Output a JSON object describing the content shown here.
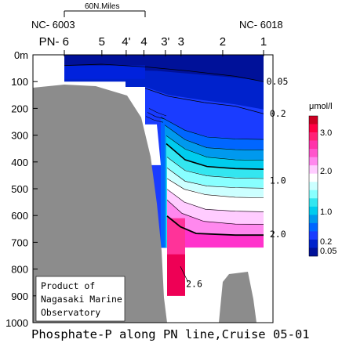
{
  "chart_data": {
    "type": "contour",
    "title": "Phosphate-P along PN line,Cruise 05-01",
    "y_axis": {
      "label": "",
      "unit_suffix": "m",
      "range": [
        0,
        1000
      ],
      "ticks": [
        0,
        100,
        200,
        300,
        400,
        500,
        600,
        700,
        800,
        900,
        1000
      ]
    },
    "stations": [
      {
        "label": "PN- 6",
        "x_km": 0
      },
      {
        "label": "5",
        "x_km": 91
      },
      {
        "label": "4'",
        "x_km": 150
      },
      {
        "label": "4",
        "x_km": 193
      },
      {
        "label": "3'",
        "x_km": 245
      },
      {
        "label": "3",
        "x_km": 283
      },
      {
        "label": "2",
        "x_km": 384
      },
      {
        "label": "1",
        "x_km": 483
      }
    ],
    "end_stations": {
      "left": "NC- 6003",
      "right": "NC- 6018"
    },
    "scale_bar": {
      "label": "60N.Miles",
      "length_km": 193
    },
    "contour_labels": [
      {
        "text": "0.05",
        "x_km": 490,
        "depth": 100
      },
      {
        "text": "0.2",
        "x_km": 498,
        "depth": 220
      },
      {
        "text": "1.0",
        "x_km": 498,
        "depth": 470
      },
      {
        "text": "2.0",
        "x_km": 498,
        "depth": 670
      },
      {
        "text": "2.6",
        "x_km": 295,
        "depth": 855
      }
    ],
    "colorbar": {
      "unit": "μmol/l",
      "ticks": [
        {
          "label": "3.0",
          "value": 3.0
        },
        {
          "label": "2.0",
          "value": 2.0
        },
        {
          "label": "1.0",
          "value": 1.0
        },
        {
          "label": "0.2",
          "value": 0.2
        },
        {
          "label": "0.05",
          "value": 0.05
        }
      ]
    },
    "note": "Product of Nagasaki Marine Observatory"
  }
}
